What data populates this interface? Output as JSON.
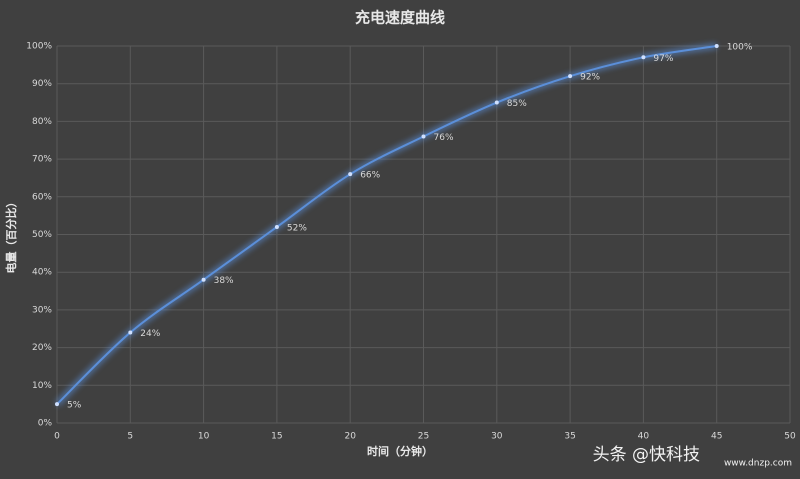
{
  "chart_data": {
    "type": "line",
    "title": "充电速度曲线",
    "x_label": "时间（分钟）",
    "y_label": "电量（百分比）",
    "x": [
      0,
      5,
      10,
      15,
      20,
      25,
      30,
      35,
      40,
      45
    ],
    "values": [
      5,
      24,
      38,
      52,
      66,
      76,
      85,
      92,
      97,
      100
    ],
    "value_labels": [
      "5%",
      "24%",
      "38%",
      "52%",
      "66%",
      "76%",
      "85%",
      "92%",
      "97%",
      "100%"
    ],
    "color": "#5b8fd9",
    "xlim": [
      0,
      50
    ],
    "xticks": [
      0,
      5,
      10,
      15,
      20,
      25,
      30,
      35,
      40,
      45,
      50
    ],
    "ylim": [
      0,
      100
    ],
    "yticks": [
      {
        "value": 0,
        "label": "0%"
      },
      {
        "value": 10,
        "label": "10%"
      },
      {
        "value": 20,
        "label": "20%"
      },
      {
        "value": 30,
        "label": "30%"
      },
      {
        "value": 40,
        "label": "40%"
      },
      {
        "value": 50,
        "label": "50%"
      },
      {
        "value": 60,
        "label": "60%"
      },
      {
        "value": 70,
        "label": "70%"
      },
      {
        "value": 80,
        "label": "80%"
      },
      {
        "value": 90,
        "label": "90%"
      },
      {
        "value": 100,
        "label": "100%"
      }
    ],
    "grid": true,
    "watermark": "头条 @快科技",
    "watermark_url": "www.dnzp.com"
  }
}
